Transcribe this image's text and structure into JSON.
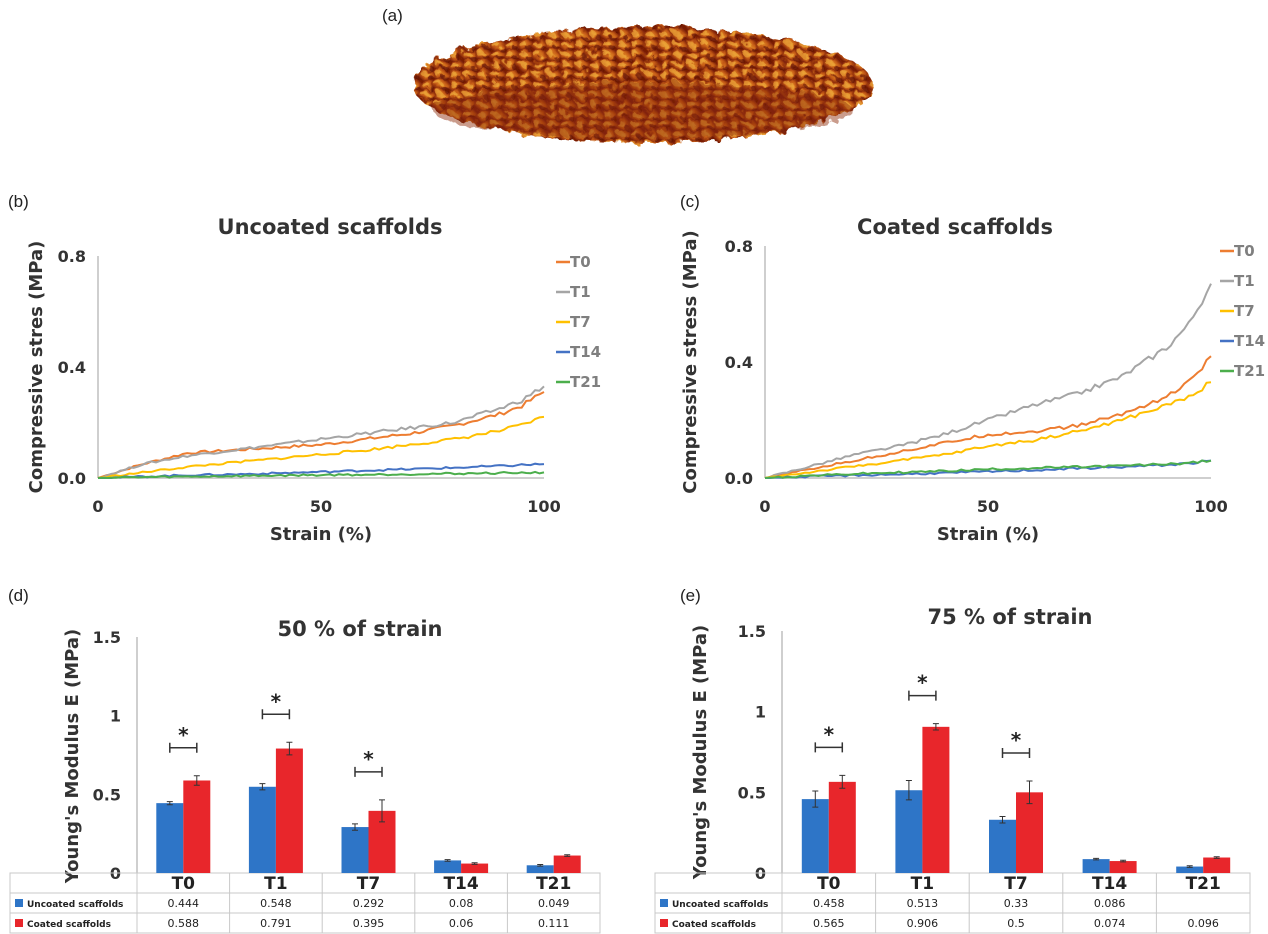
{
  "panels": {
    "a": "(a)",
    "b": "(b)",
    "c": "(c)",
    "d": "(d)",
    "e": "(e)"
  },
  "colors": {
    "T0": "#ed7d31",
    "T1": "#a5a5a5",
    "T7": "#ffc000",
    "T14": "#4472c4",
    "T21": "#4cae4c",
    "uncoated": "#2e75c7",
    "coated": "#e8262b",
    "scaffold_dark": "#7a1e06",
    "scaffold_light": "#e8a020"
  },
  "chart_data": [
    {
      "id": "b",
      "type": "line",
      "title": "Uncoated scaffolds",
      "xlabel": "Strain (%)",
      "ylabel": "Compressive stres (MPa)",
      "xlim": [
        0,
        100
      ],
      "ylim": [
        0,
        0.8
      ],
      "xticks": [
        0,
        50,
        100
      ],
      "yticks": [
        0.0,
        0.4,
        0.8
      ],
      "ytick_labels": [
        "0.0",
        "0.4",
        "0.8"
      ],
      "legend": "top-right",
      "grid": false,
      "x": [
        0,
        10,
        20,
        30,
        40,
        50,
        60,
        70,
        80,
        90,
        95,
        100
      ],
      "series": [
        {
          "name": "T0",
          "values": [
            0.0,
            0.05,
            0.09,
            0.1,
            0.11,
            0.12,
            0.14,
            0.16,
            0.19,
            0.23,
            0.26,
            0.31
          ]
        },
        {
          "name": "T1",
          "values": [
            0.0,
            0.05,
            0.08,
            0.1,
            0.12,
            0.14,
            0.16,
            0.18,
            0.2,
            0.25,
            0.28,
            0.33
          ]
        },
        {
          "name": "T7",
          "values": [
            0.0,
            0.02,
            0.04,
            0.055,
            0.07,
            0.085,
            0.1,
            0.12,
            0.14,
            0.17,
            0.19,
            0.22
          ]
        },
        {
          "name": "T14",
          "values": [
            0.0,
            0.005,
            0.01,
            0.013,
            0.017,
            0.022,
            0.027,
            0.032,
            0.037,
            0.043,
            0.047,
            0.05
          ]
        },
        {
          "name": "T21",
          "values": [
            0.0,
            0.003,
            0.005,
            0.007,
            0.009,
            0.011,
            0.012,
            0.014,
            0.016,
            0.018,
            0.019,
            0.02
          ]
        }
      ]
    },
    {
      "id": "c",
      "type": "line",
      "title": "Coated scaffolds",
      "xlabel": "Strain (%)",
      "ylabel": "Compressive stress (MPa)",
      "xlim": [
        0,
        100
      ],
      "ylim": [
        0,
        0.8
      ],
      "xticks": [
        0,
        50,
        100
      ],
      "yticks": [
        0.0,
        0.4,
        0.8
      ],
      "ytick_labels": [
        "0.0",
        "0.4",
        "0.8"
      ],
      "legend": "top-right",
      "grid": false,
      "x": [
        0,
        10,
        20,
        30,
        40,
        50,
        60,
        70,
        80,
        90,
        95,
        100
      ],
      "series": [
        {
          "name": "T0",
          "values": [
            0.0,
            0.03,
            0.06,
            0.09,
            0.12,
            0.15,
            0.16,
            0.18,
            0.22,
            0.28,
            0.33,
            0.42
          ]
        },
        {
          "name": "T1",
          "values": [
            0.0,
            0.04,
            0.08,
            0.11,
            0.15,
            0.2,
            0.25,
            0.29,
            0.35,
            0.45,
            0.53,
            0.67
          ]
        },
        {
          "name": "T7",
          "values": [
            0.0,
            0.02,
            0.04,
            0.06,
            0.08,
            0.11,
            0.13,
            0.16,
            0.2,
            0.25,
            0.28,
            0.33
          ]
        },
        {
          "name": "T14",
          "values": [
            0.0,
            0.005,
            0.009,
            0.013,
            0.017,
            0.022,
            0.027,
            0.033,
            0.038,
            0.045,
            0.05,
            0.06
          ]
        },
        {
          "name": "T21",
          "values": [
            0.0,
            0.008,
            0.014,
            0.019,
            0.024,
            0.03,
            0.034,
            0.038,
            0.042,
            0.048,
            0.052,
            0.06
          ]
        }
      ]
    },
    {
      "id": "d",
      "type": "bar",
      "title": "50 % of strain",
      "xlabel": "",
      "ylabel": "Young's Modulus E (MPa)",
      "ylim": [
        0,
        1.5
      ],
      "yticks": [
        0,
        0.5,
        1,
        1.5
      ],
      "ytick_labels": [
        "0",
        "0.5",
        "1",
        "1.5"
      ],
      "categories": [
        "T0",
        "T1",
        "T7",
        "T14",
        "T21"
      ],
      "legend": "bottom-table",
      "series": [
        {
          "name": "Uncoated scaffolds",
          "values": [
            0.444,
            0.548,
            0.292,
            0.08,
            0.049
          ],
          "labels": [
            "0.444",
            "0.548",
            "0.292",
            "0.08",
            "0.049"
          ],
          "errors": [
            0.01,
            0.02,
            0.02,
            0.005,
            0.005
          ]
        },
        {
          "name": "Coated scaffolds",
          "values": [
            0.588,
            0.791,
            0.395,
            0.06,
            0.111
          ],
          "labels": [
            "0.588",
            "0.791",
            "0.395",
            "0.06",
            "0.111"
          ],
          "errors": [
            0.03,
            0.04,
            0.07,
            0.005,
            0.005
          ]
        }
      ],
      "significance": [
        {
          "category": "T0",
          "mark": "*"
        },
        {
          "category": "T1",
          "mark": "*"
        },
        {
          "category": "T7",
          "mark": "*"
        }
      ]
    },
    {
      "id": "e",
      "type": "bar",
      "title": "75 % of strain",
      "xlabel": "",
      "ylabel": "Young's Modulus E (MPa)",
      "ylim": [
        0,
        1.5
      ],
      "yticks": [
        0,
        0.5,
        1,
        1.5
      ],
      "ytick_labels": [
        "0",
        "0.5",
        "1",
        "1.5"
      ],
      "categories": [
        "T0",
        "T1",
        "T7",
        "T14",
        "T21"
      ],
      "legend": "bottom-table",
      "series": [
        {
          "name": "Uncoated scaffolds",
          "values": [
            0.458,
            0.513,
            0.33,
            0.086,
            0.04
          ],
          "labels": [
            "0.458",
            "0.513",
            "0.33",
            "0.086",
            ""
          ],
          "errors": [
            0.05,
            0.06,
            0.02,
            0.005,
            0.005
          ]
        },
        {
          "name": "Coated scaffolds",
          "values": [
            0.565,
            0.906,
            0.5,
            0.074,
            0.096
          ],
          "labels": [
            "0.565",
            "0.906",
            "0.5",
            "0.074",
            "0.096"
          ],
          "errors": [
            0.04,
            0.02,
            0.07,
            0.005,
            0.005
          ]
        }
      ],
      "significance": [
        {
          "category": "T0",
          "mark": "*"
        },
        {
          "category": "T1",
          "mark": "*"
        },
        {
          "category": "T7",
          "mark": "*"
        }
      ]
    }
  ]
}
